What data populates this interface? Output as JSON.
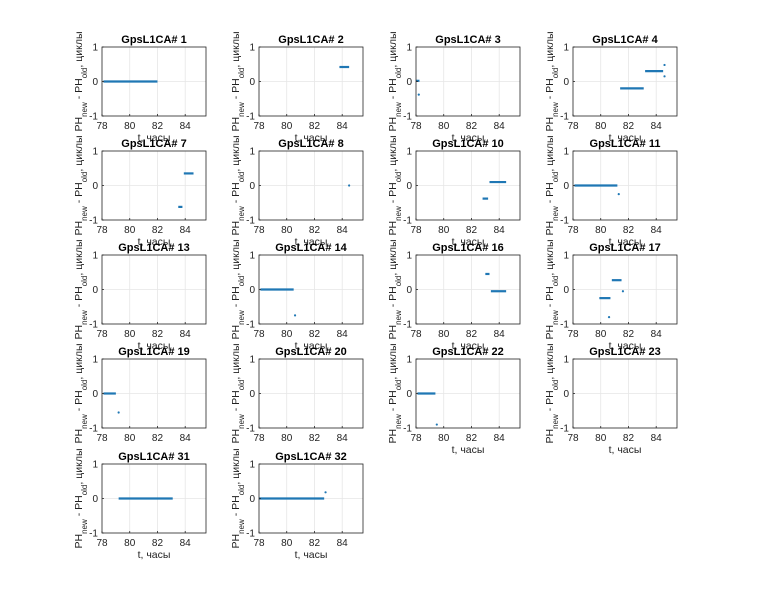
{
  "figure": {
    "background": "#ffffff",
    "xlabel": "t, часы",
    "ylabel_parts": [
      "PH",
      "new",
      " - PH",
      "old",
      ", циклы"
    ],
    "xticks": [
      78,
      80,
      82,
      84
    ],
    "yticks": [
      -1,
      0,
      1
    ],
    "xlim": [
      78,
      85.5
    ],
    "ylim": [
      -1,
      1
    ],
    "grid": true,
    "marker_color": "#1f77b4",
    "grid_color": "#e6e6e6",
    "axes_color": "#262626"
  },
  "chart_data": [
    {
      "type": "scatter",
      "title": "GpsL1CA# 1",
      "show_xlabel": true,
      "segments": [
        {
          "x": [
            78.1,
            82.0
          ],
          "y": 0
        }
      ],
      "points": []
    },
    {
      "type": "scatter",
      "title": "GpsL1CA# 2",
      "show_xlabel": true,
      "segments": [
        {
          "x": [
            83.8,
            84.5
          ],
          "y": 0.42
        }
      ],
      "points": []
    },
    {
      "type": "scatter",
      "title": "GpsL1CA# 3",
      "show_xlabel": true,
      "segments": [
        {
          "x": [
            78.0,
            78.25
          ],
          "y": 0.02
        }
      ],
      "points": [
        {
          "x": 78.2,
          "y": -0.38
        }
      ]
    },
    {
      "type": "scatter",
      "title": "GpsL1CA# 4",
      "show_xlabel": true,
      "segments": [
        {
          "x": [
            81.4,
            83.1
          ],
          "y": -0.2
        },
        {
          "x": [
            83.2,
            84.5
          ],
          "y": 0.3
        }
      ],
      "points": [
        {
          "x": 84.6,
          "y": 0.48
        },
        {
          "x": 84.6,
          "y": 0.15
        }
      ]
    },
    {
      "type": "scatter",
      "title": "GpsL1CA# 7",
      "show_xlabel": true,
      "segments": [
        {
          "x": [
            83.5,
            83.8
          ],
          "y": -0.62
        },
        {
          "x": [
            83.9,
            84.6
          ],
          "y": 0.35
        }
      ],
      "points": []
    },
    {
      "type": "scatter",
      "title": "GpsL1CA# 8",
      "show_xlabel": true,
      "segments": [],
      "points": [
        {
          "x": 84.5,
          "y": 0.0
        }
      ]
    },
    {
      "type": "scatter",
      "title": "GpsL1CA# 10",
      "show_xlabel": true,
      "segments": [
        {
          "x": [
            82.8,
            83.2
          ],
          "y": -0.38
        },
        {
          "x": [
            83.3,
            84.5
          ],
          "y": 0.1
        }
      ],
      "points": []
    },
    {
      "type": "scatter",
      "title": "GpsL1CA# 11",
      "show_xlabel": true,
      "segments": [
        {
          "x": [
            78.1,
            81.2
          ],
          "y": 0
        }
      ],
      "points": [
        {
          "x": 81.3,
          "y": -0.25
        }
      ]
    },
    {
      "type": "scatter",
      "title": "GpsL1CA# 13",
      "show_xlabel": true,
      "segments": [],
      "points": []
    },
    {
      "type": "scatter",
      "title": "GpsL1CA# 14",
      "show_xlabel": true,
      "segments": [
        {
          "x": [
            78.1,
            80.5
          ],
          "y": 0
        }
      ],
      "points": [
        {
          "x": 80.6,
          "y": -0.75
        }
      ]
    },
    {
      "type": "scatter",
      "title": "GpsL1CA# 16",
      "show_xlabel": true,
      "segments": [
        {
          "x": [
            83.0,
            83.3
          ],
          "y": 0.45
        },
        {
          "x": [
            83.4,
            84.5
          ],
          "y": -0.05
        }
      ],
      "points": []
    },
    {
      "type": "scatter",
      "title": "GpsL1CA# 17",
      "show_xlabel": true,
      "segments": [
        {
          "x": [
            79.9,
            80.7
          ],
          "y": -0.25
        },
        {
          "x": [
            80.8,
            81.5
          ],
          "y": 0.27
        }
      ],
      "points": [
        {
          "x": 80.6,
          "y": -0.8
        },
        {
          "x": 81.6,
          "y": -0.05
        }
      ]
    },
    {
      "type": "scatter",
      "title": "GpsL1CA# 19",
      "show_xlabel": false,
      "segments": [
        {
          "x": [
            78.1,
            79.0
          ],
          "y": 0
        }
      ],
      "points": [
        {
          "x": 79.2,
          "y": -0.55
        }
      ]
    },
    {
      "type": "scatter",
      "title": "GpsL1CA# 20",
      "show_xlabel": false,
      "segments": [],
      "points": []
    },
    {
      "type": "scatter",
      "title": "GpsL1CA# 22",
      "show_xlabel": true,
      "segments": [
        {
          "x": [
            78.1,
            79.4
          ],
          "y": 0
        }
      ],
      "points": [
        {
          "x": 79.5,
          "y": -0.9
        }
      ]
    },
    {
      "type": "scatter",
      "title": "GpsL1CA# 23",
      "show_xlabel": true,
      "segments": [],
      "points": []
    },
    {
      "type": "scatter",
      "title": "GpsL1CA# 31",
      "show_xlabel": true,
      "segments": [
        {
          "x": [
            79.2,
            83.1
          ],
          "y": 0
        }
      ],
      "points": []
    },
    {
      "type": "scatter",
      "title": "GpsL1CA# 32",
      "show_xlabel": true,
      "segments": [
        {
          "x": [
            78.0,
            82.7
          ],
          "y": 0
        }
      ],
      "points": [
        {
          "x": 82.8,
          "y": 0.18
        }
      ]
    }
  ]
}
